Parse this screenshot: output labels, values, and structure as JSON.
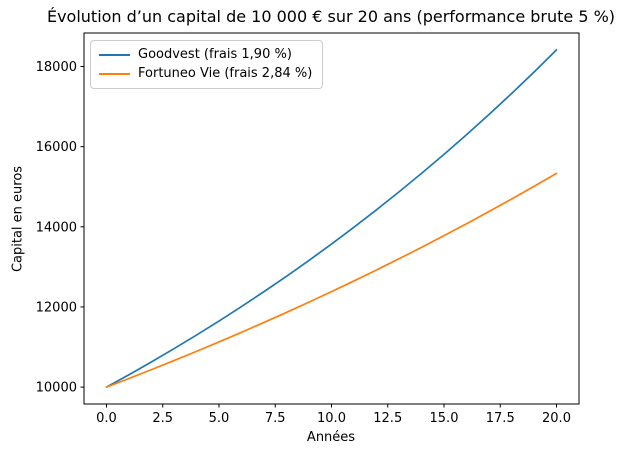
{
  "chart_data": {
    "type": "line",
    "title": "Évolution d’un capital de 10 000 € sur 20 ans (performance brute 5 %)",
    "xlabel": "Années",
    "ylabel": "Capital en euros",
    "grid": false,
    "legend_position": "upper left",
    "axis_color": "#000000",
    "background_color": "#ffffff",
    "xlim": [
      -1,
      21
    ],
    "ylim": [
      9579,
      18836
    ],
    "x_ticks": [
      0.0,
      2.5,
      5.0,
      7.5,
      10.0,
      12.5,
      15.0,
      17.5,
      20.0
    ],
    "x_tick_labels": [
      "0.0",
      "2.5",
      "5.0",
      "7.5",
      "10.0",
      "12.5",
      "15.0",
      "17.5",
      "20.0"
    ],
    "y_ticks": [
      10000,
      12000,
      14000,
      16000,
      18000
    ],
    "y_tick_labels": [
      "10000",
      "12000",
      "14000",
      "16000",
      "18000"
    ],
    "x": [
      0,
      1,
      2,
      3,
      4,
      5,
      6,
      7,
      8,
      9,
      10,
      11,
      12,
      13,
      14,
      15,
      16,
      17,
      18,
      19,
      20
    ],
    "series": [
      {
        "name": "Goodvest (frais 1,90 %)",
        "color": "#1f77b4",
        "values": [
          10000,
          10310,
          10630,
          10959,
          11299,
          11649,
          12010,
          12383,
          12766,
          13162,
          13570,
          13991,
          14425,
          14872,
          15333,
          15808,
          16298,
          16803,
          17324,
          17861,
          18415
        ]
      },
      {
        "name": "Fortuneo Vie (frais 2,84 %)",
        "color": "#ff7f0e",
        "values": [
          10000,
          10216,
          10437,
          10662,
          10892,
          11128,
          11368,
          11614,
          11864,
          12121,
          12383,
          12650,
          12923,
          13202,
          13488,
          13779,
          14076,
          14381,
          14691,
          15008,
          15333
        ]
      }
    ]
  }
}
